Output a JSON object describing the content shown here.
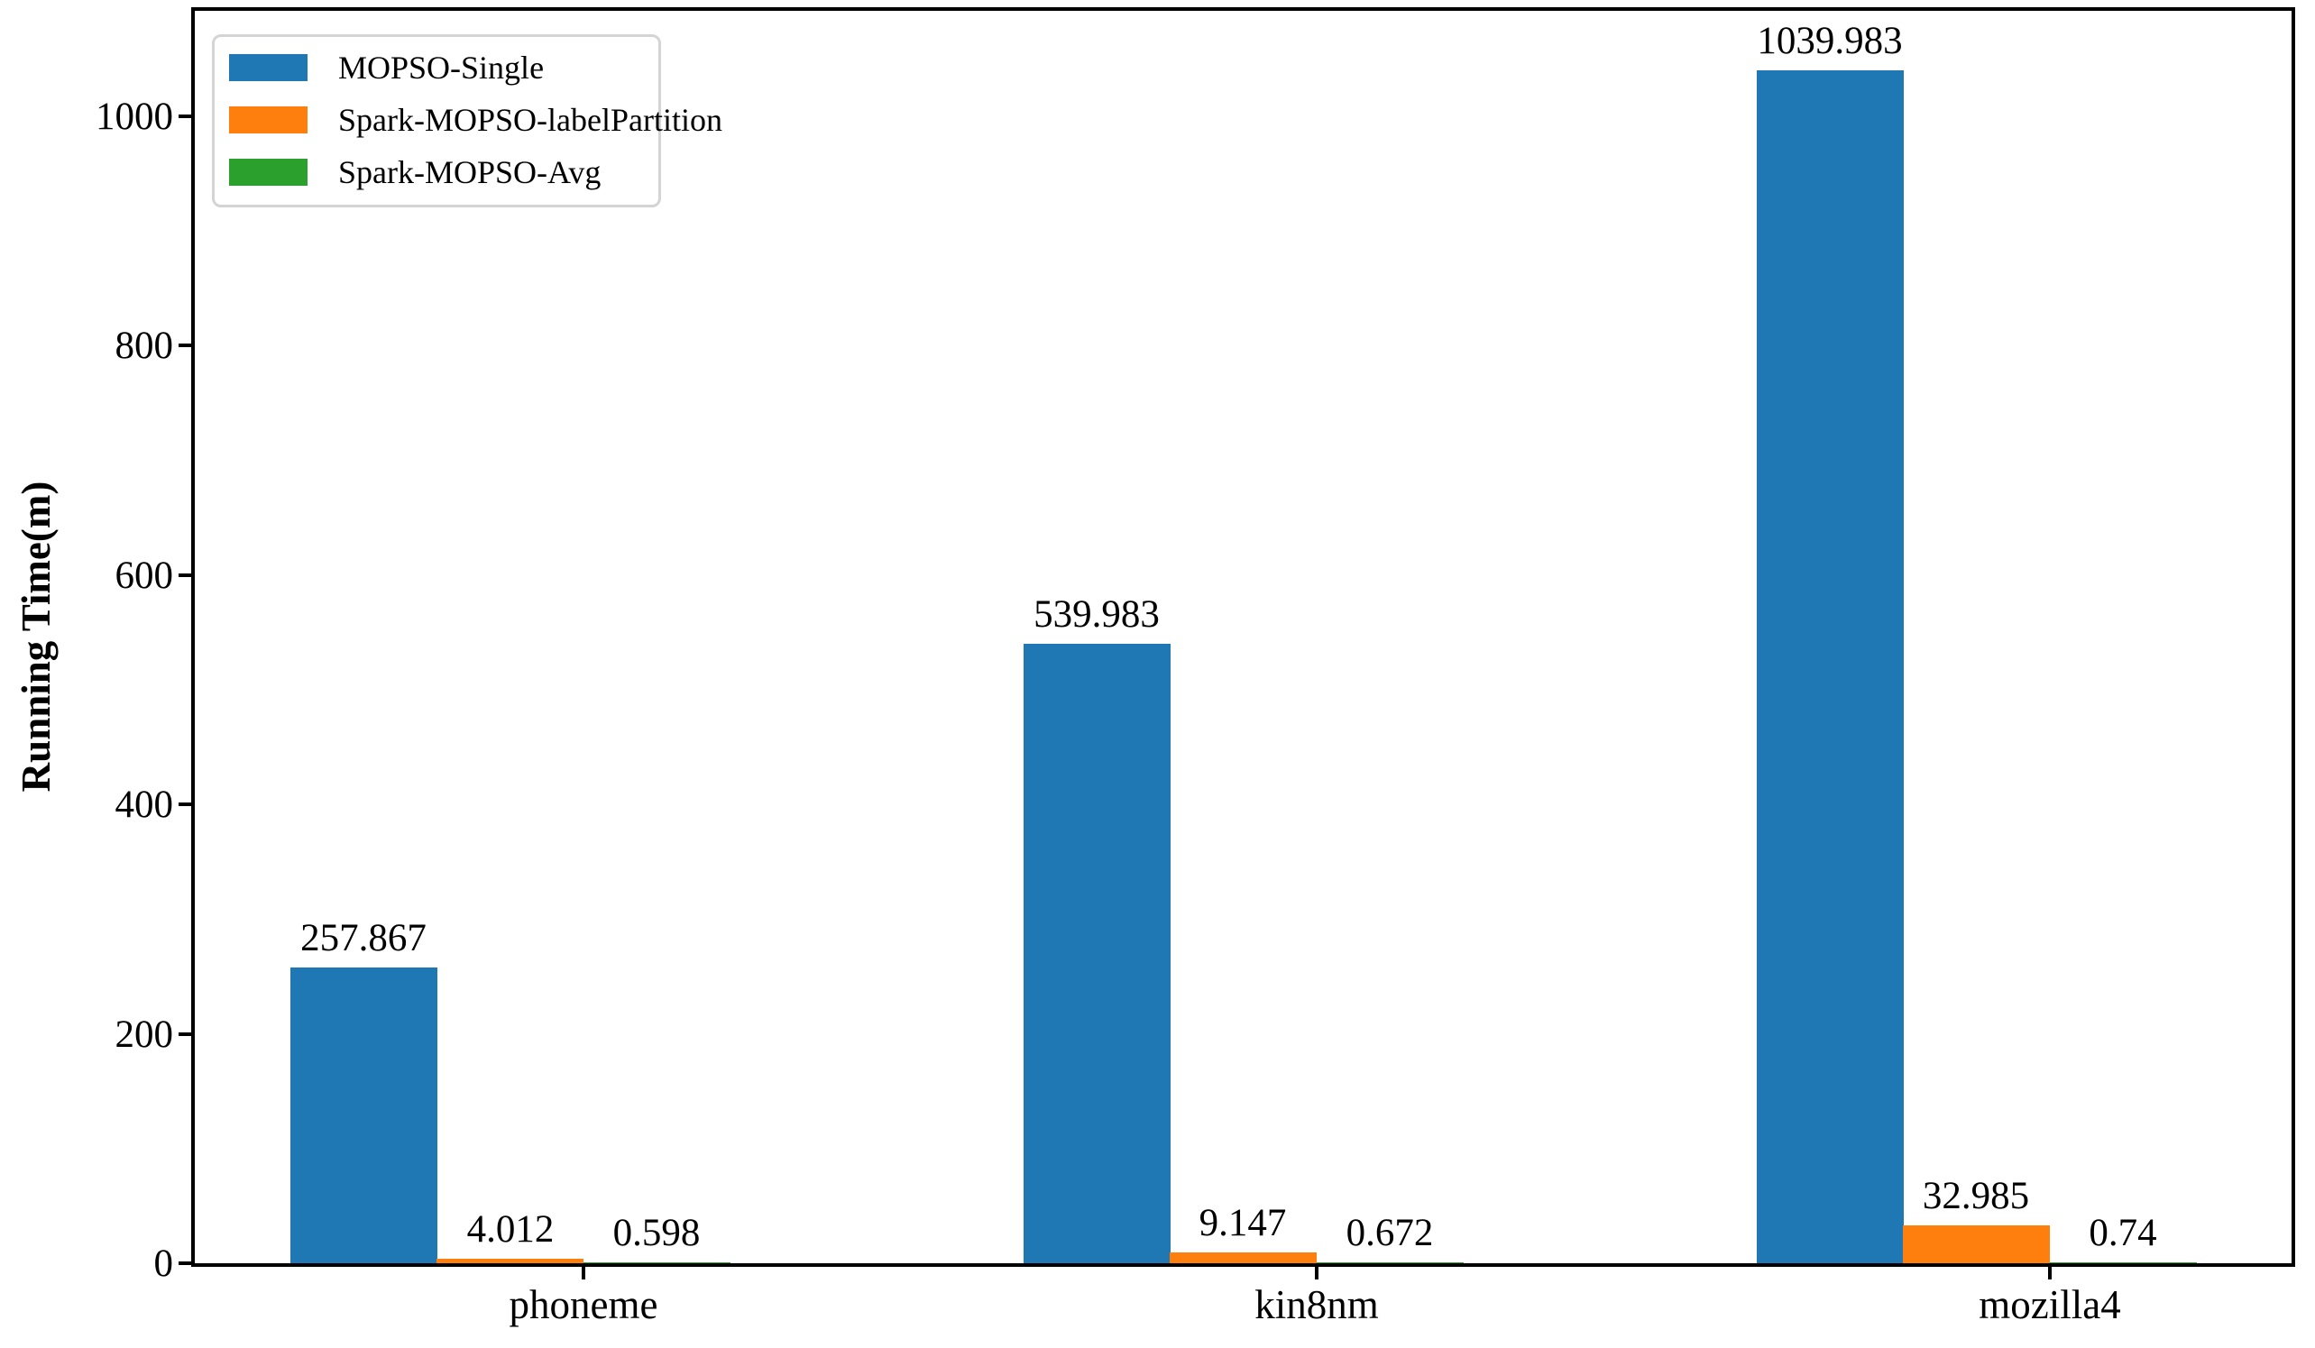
{
  "chart_data": {
    "type": "bar",
    "title": "",
    "xlabel": "",
    "ylabel": "Running Time(m)",
    "categories": [
      "phoneme",
      "kin8nm",
      "mozilla4"
    ],
    "series": [
      {
        "name": "MOPSO-Single",
        "color": "#1f77b4",
        "values": [
          257.867,
          539.983,
          1039.983
        ],
        "labels": [
          "257.867",
          "539.983",
          "1039.983"
        ]
      },
      {
        "name": "Spark-MOPSO-labelPartition",
        "color": "#ff7f0e",
        "values": [
          4.012,
          9.147,
          32.985
        ],
        "labels": [
          "4.012",
          "9.147",
          "32.985"
        ]
      },
      {
        "name": "Spark-MOPSO-Avg",
        "color": "#2ca02c",
        "values": [
          0.598,
          0.672,
          0.74
        ],
        "labels": [
          "0.598",
          "0.672",
          "0.74"
        ]
      }
    ],
    "yticks": [
      0,
      200,
      400,
      600,
      800,
      1000
    ],
    "ytick_labels": [
      "0",
      "200",
      "400",
      "600",
      "800",
      "1000"
    ],
    "ylim": [
      0,
      1092
    ],
    "xlim": [
      -0.53,
      2.33
    ],
    "group_positions": [
      0,
      1,
      2
    ],
    "bar_width": 0.2,
    "grid": false,
    "legend": {
      "position": "upper left"
    },
    "axis_color": "#000000",
    "text_color": "#000000",
    "background_color": "#ffffff"
  }
}
